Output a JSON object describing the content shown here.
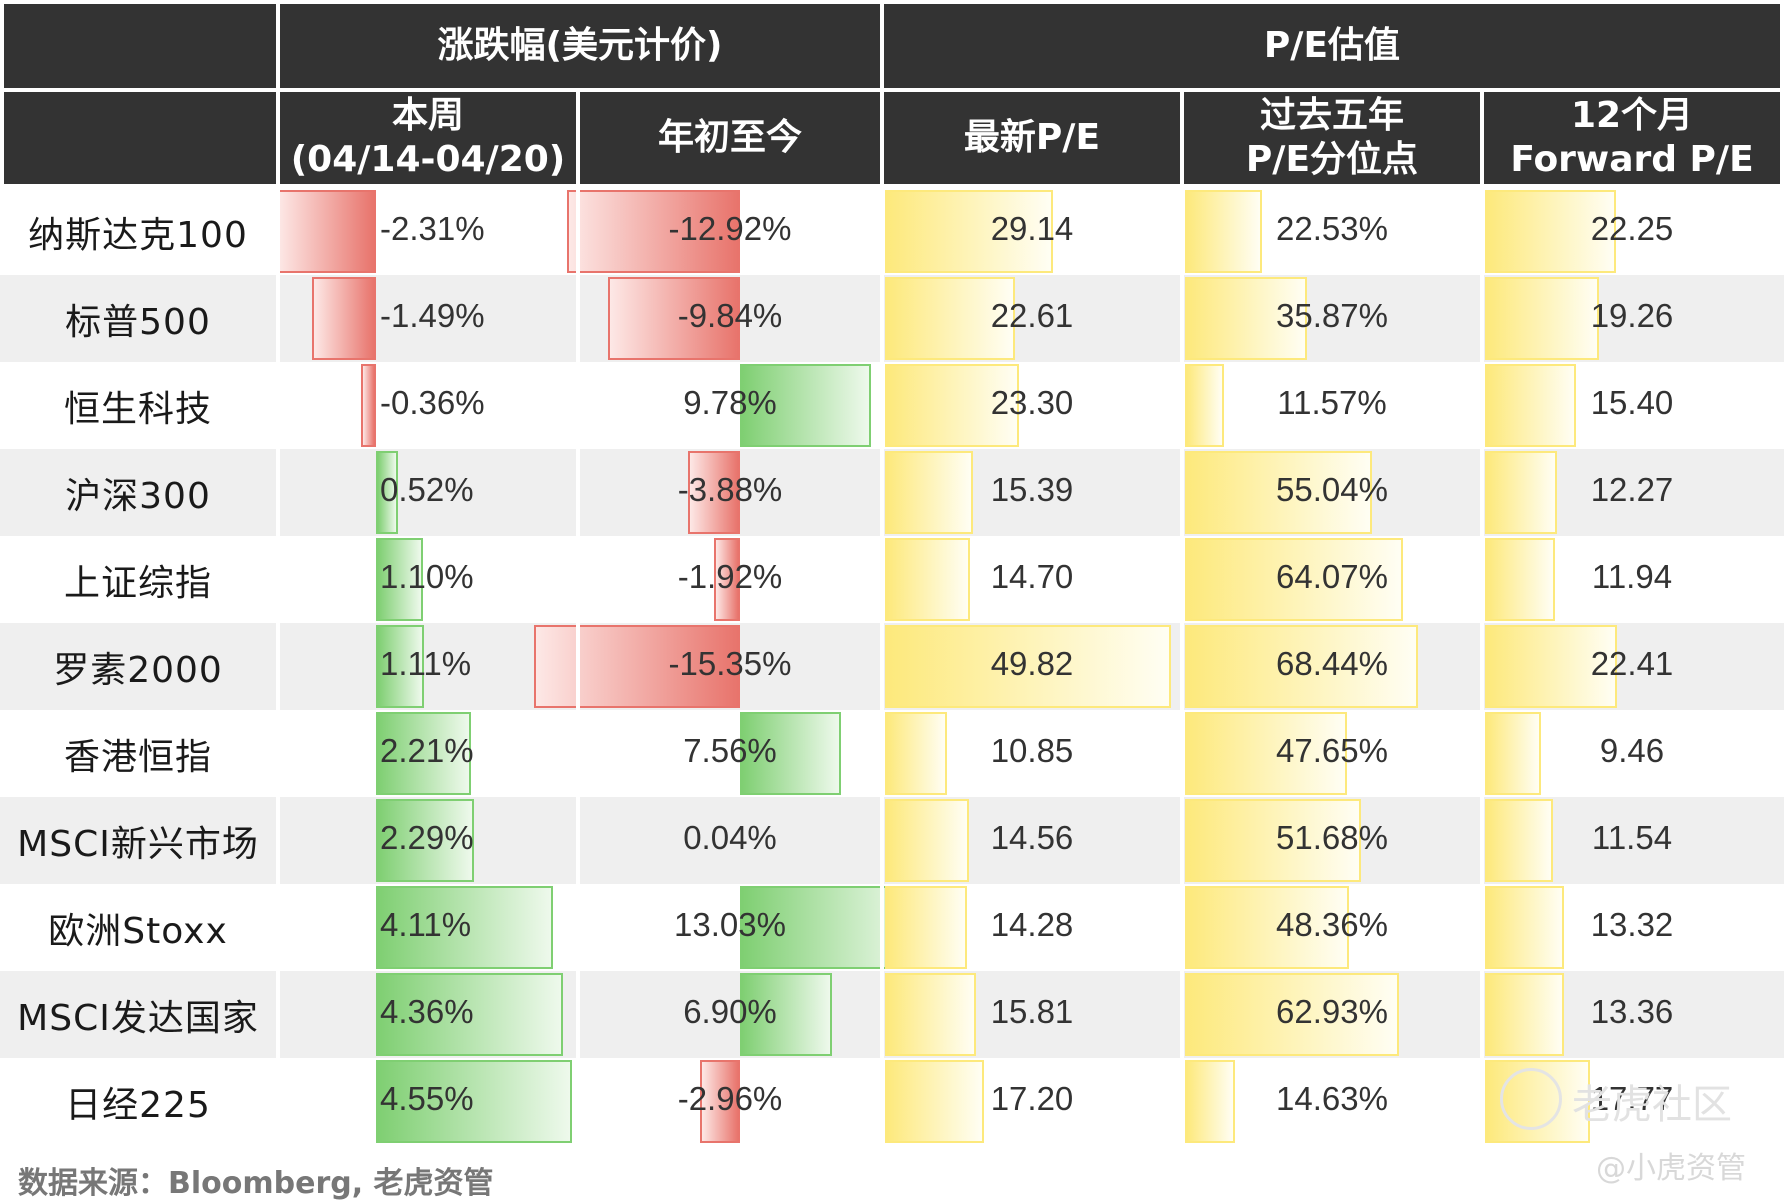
{
  "header": {
    "group_change": "涨跌幅(美元计价)",
    "group_pe": "P/E估值",
    "col_week_line1": "本周",
    "col_week_line2": "(04/14-04/20)",
    "col_ytd": "年初至今",
    "col_pe": "最新P/E",
    "col_pct_line1": "过去五年",
    "col_pct_line2": "P/E分位点",
    "col_fwd_line1": "12个月",
    "col_fwd_line2": "Forward P/E"
  },
  "footer": {
    "source": "数据来源：Bloomberg, 老虎资管",
    "watermark_main": "老虎社区",
    "watermark_sub": "@小虎资管"
  },
  "colors": {
    "header_bg": "#333333",
    "negative": "#e8746c",
    "positive": "#7fcf72",
    "valuation": "#fde97c"
  },
  "chart_data": {
    "type": "table",
    "rows": [
      {
        "name": "纳斯达克100",
        "week": -2.31,
        "ytd": -12.92,
        "pe": 29.14,
        "pct": 22.53,
        "fwd": 22.25,
        "week_text": "-2.31%",
        "ytd_text": "-12.92%",
        "pe_text": "29.14",
        "pct_text": "22.53%",
        "fwd_text": "22.25"
      },
      {
        "name": "标普500",
        "week": -1.49,
        "ytd": -9.84,
        "pe": 22.61,
        "pct": 35.87,
        "fwd": 19.26,
        "week_text": "-1.49%",
        "ytd_text": "-9.84%",
        "pe_text": "22.61",
        "pct_text": "35.87%",
        "fwd_text": "19.26"
      },
      {
        "name": "恒生科技",
        "week": -0.36,
        "ytd": 9.78,
        "pe": 23.3,
        "pct": 11.57,
        "fwd": 15.4,
        "week_text": "-0.36%",
        "ytd_text": "9.78%",
        "pe_text": "23.30",
        "pct_text": "11.57%",
        "fwd_text": "15.40"
      },
      {
        "name": "沪深300",
        "week": 0.52,
        "ytd": -3.88,
        "pe": 15.39,
        "pct": 55.04,
        "fwd": 12.27,
        "week_text": "0.52%",
        "ytd_text": "-3.88%",
        "pe_text": "15.39",
        "pct_text": "55.04%",
        "fwd_text": "12.27"
      },
      {
        "name": "上证综指",
        "week": 1.1,
        "ytd": -1.92,
        "pe": 14.7,
        "pct": 64.07,
        "fwd": 11.94,
        "week_text": "1.10%",
        "ytd_text": "-1.92%",
        "pe_text": "14.70",
        "pct_text": "64.07%",
        "fwd_text": "11.94"
      },
      {
        "name": "罗素2000",
        "week": 1.11,
        "ytd": -15.35,
        "pe": 49.82,
        "pct": 68.44,
        "fwd": 22.41,
        "week_text": "1.11%",
        "ytd_text": "-15.35%",
        "pe_text": "49.82",
        "pct_text": "68.44%",
        "fwd_text": "22.41"
      },
      {
        "name": "香港恒指",
        "week": 2.21,
        "ytd": 7.56,
        "pe": 10.85,
        "pct": 47.65,
        "fwd": 9.46,
        "week_text": "2.21%",
        "ytd_text": "7.56%",
        "pe_text": "10.85",
        "pct_text": "47.65%",
        "fwd_text": "9.46"
      },
      {
        "name": "MSCI新兴市场",
        "week": 2.29,
        "ytd": 0.04,
        "pe": 14.56,
        "pct": 51.68,
        "fwd": 11.54,
        "week_text": "2.29%",
        "ytd_text": "0.04%",
        "pe_text": "14.56",
        "pct_text": "51.68%",
        "fwd_text": "11.54"
      },
      {
        "name": "欧洲Stoxx",
        "week": 4.11,
        "ytd": 13.03,
        "pe": 14.28,
        "pct": 48.36,
        "fwd": 13.32,
        "week_text": "4.11%",
        "ytd_text": "13.03%",
        "pe_text": "14.28",
        "pct_text": "48.36%",
        "fwd_text": "13.32"
      },
      {
        "name": "MSCI发达国家",
        "week": 4.36,
        "ytd": 6.9,
        "pe": 15.81,
        "pct": 62.93,
        "fwd": 13.36,
        "week_text": "4.36%",
        "ytd_text": "6.90%",
        "pe_text": "15.81",
        "pct_text": "62.93%",
        "fwd_text": "13.36"
      },
      {
        "name": "日经225",
        "week": 4.55,
        "ytd": -2.96,
        "pe": 17.2,
        "pct": 14.63,
        "fwd": 17.77,
        "week_text": "4.55%",
        "ytd_text": "-2.96%",
        "pe_text": "17.20",
        "pct_text": "14.63%",
        "fwd_text": "17.77"
      }
    ]
  }
}
